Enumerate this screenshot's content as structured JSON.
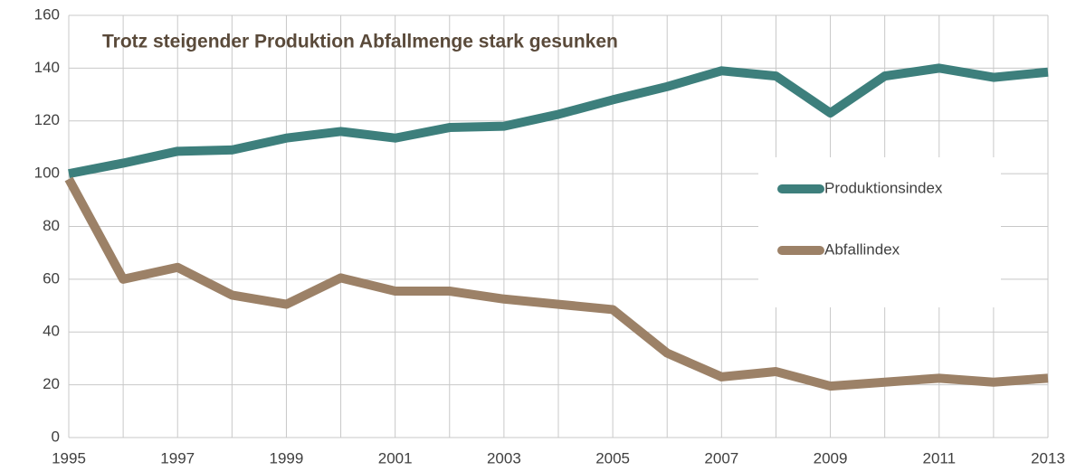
{
  "chart_data": {
    "type": "line",
    "title": "Trotz steigender Produktion Abfallmenge stark gesunken",
    "categories": [
      "1995",
      null,
      "1997",
      null,
      "1999",
      null,
      "2001",
      null,
      "2003",
      null,
      "2005",
      null,
      "2007",
      null,
      "2009",
      null,
      "2011",
      null,
      "2013"
    ],
    "series": [
      {
        "name": "Produktionsindex",
        "color": "#3d7f7c",
        "values": [
          100,
          104,
          108.5,
          109,
          113.5,
          116,
          113.5,
          117.5,
          118,
          122.5,
          128,
          133,
          139,
          137,
          123,
          137,
          140,
          136.5,
          138.5
        ]
      },
      {
        "name": "Abfallindex",
        "color": "#9c8167",
        "values": [
          98,
          60,
          64.5,
          54,
          50.5,
          60.5,
          55.5,
          55.5,
          52.5,
          50.5,
          48.5,
          32,
          23,
          25,
          19.5,
          21,
          22.5,
          21,
          22.5
        ]
      }
    ],
    "ylim": [
      0,
      160
    ],
    "yticks": [
      0,
      20,
      40,
      60,
      80,
      100,
      120,
      140,
      160
    ],
    "grid": true,
    "legend": "right"
  }
}
